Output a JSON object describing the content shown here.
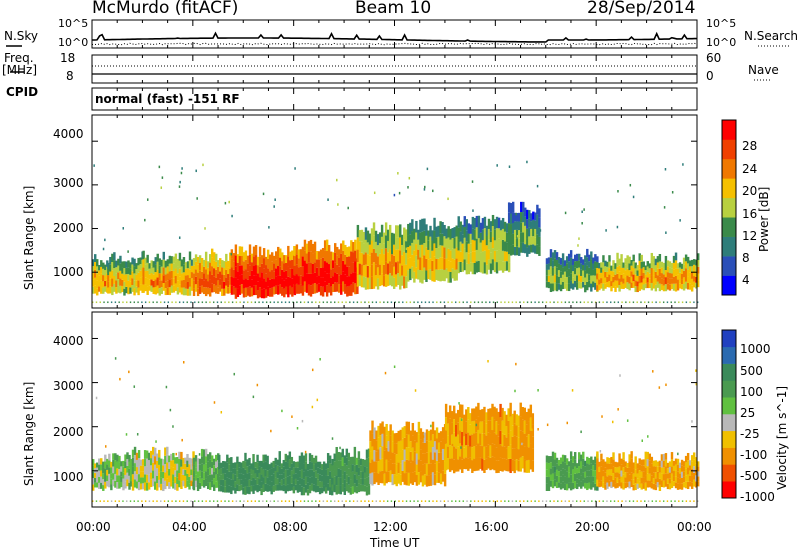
{
  "header": {
    "title": "McMurdo (fitACF)",
    "beam": "Beam 10",
    "date": "28/Sep/2014"
  },
  "noise_panel": {
    "left_label": "N.Sky",
    "right_label": "N.Search",
    "left_ticks": [
      "10^5",
      "10^0"
    ],
    "right_ticks": [
      "10^5",
      "10^0"
    ]
  },
  "freq_panel": {
    "left_label_1": "Freq.",
    "left_label_2": "[MHz]",
    "right_label": "Nave",
    "left_ticks": [
      "18",
      "8"
    ],
    "right_ticks": [
      "60",
      "0"
    ]
  },
  "cpid_panel": {
    "label": "CPID",
    "text": "normal (fast) -151 RF"
  },
  "power_panel": {
    "ylabel": "Slant Range [km]",
    "y_ticks": [
      "4000",
      "3000",
      "2000",
      "1000"
    ],
    "colorbar_label": "Power [dB]",
    "colorbar_ticks": [
      "28",
      "24",
      "20",
      "16",
      "12",
      "8",
      "4"
    ],
    "colors": [
      "#0000ff",
      "#2a4fb8",
      "#2e7d7a",
      "#3a8a4a",
      "#b8d040",
      "#f5c000",
      "#f07800",
      "#f04000",
      "#ff0000"
    ]
  },
  "velocity_panel": {
    "ylabel": "Slant Range [km]",
    "y_ticks": [
      "4000",
      "3000",
      "2000",
      "1000"
    ],
    "colorbar_label": "Velocity [m s^-1]",
    "colorbar_ticks": [
      "1000",
      "500",
      "100",
      "25",
      "-25",
      "-100",
      "-500",
      "-1000"
    ],
    "colors": [
      "#2040c0",
      "#2a6ab0",
      "#3a8a5a",
      "#4a9a50",
      "#60c040",
      "#b8b8b8",
      "#f0c000",
      "#f09000",
      "#f05000",
      "#ff0000"
    ]
  },
  "x_axis": {
    "ticks": [
      "00:00",
      "04:00",
      "08:00",
      "12:00",
      "16:00",
      "20:00",
      "00:00"
    ],
    "label": "Time UT"
  },
  "chart_data": {
    "type": "heatmap",
    "title": "McMurdo (fitACF) Beam 10 28/Sep/2014",
    "xlabel": "Time UT",
    "ylabel": "Slant Range [km]",
    "xlim": [
      0,
      24
    ],
    "ylim": [
      180,
      4600
    ],
    "power_range_db": [
      0,
      30
    ],
    "velocity_range": [
      -1000,
      1000
    ],
    "power_bands": [
      {
        "t0": 0.0,
        "t1": 0.6,
        "r0": 500,
        "r1": 1300,
        "db": 18
      },
      {
        "t0": 0.6,
        "t1": 2.0,
        "r0": 520,
        "r1": 1350,
        "db": 16
      },
      {
        "t0": 2.0,
        "t1": 4.0,
        "r0": 520,
        "r1": 1350,
        "db": 18
      },
      {
        "t0": 4.0,
        "t1": 5.5,
        "r0": 500,
        "r1": 1400,
        "db": 22
      },
      {
        "t0": 5.5,
        "t1": 8.0,
        "r0": 450,
        "r1": 1500,
        "db": 26
      },
      {
        "t0": 8.0,
        "t1": 10.5,
        "r0": 500,
        "r1": 1600,
        "db": 26
      },
      {
        "t0": 10.5,
        "t1": 12.5,
        "r0": 650,
        "r1": 2000,
        "db": 18
      },
      {
        "t0": 12.5,
        "t1": 14.5,
        "r0": 800,
        "r1": 2100,
        "db": 16
      },
      {
        "t0": 14.5,
        "t1": 16.5,
        "r0": 1000,
        "r1": 2200,
        "db": 14
      },
      {
        "t0": 16.5,
        "t1": 17.7,
        "r0": 1400,
        "r1": 2500,
        "db": 10
      },
      {
        "t0": 18.0,
        "t1": 20.0,
        "r0": 600,
        "r1": 1400,
        "db": 12
      },
      {
        "t0": 20.0,
        "t1": 24.0,
        "r0": 600,
        "r1": 1300,
        "db": 18
      }
    ],
    "velocity_bands": [
      {
        "t0": 0.0,
        "t1": 1.5,
        "r0": 600,
        "r1": 1300,
        "v": 50
      },
      {
        "t0": 1.5,
        "t1": 4.0,
        "r0": 600,
        "r1": 1400,
        "v": 0
      },
      {
        "t0": 4.0,
        "t1": 5.0,
        "r0": 600,
        "r1": 1400,
        "v": 100
      },
      {
        "t0": 5.0,
        "t1": 9.5,
        "r0": 500,
        "r1": 1300,
        "v": 300
      },
      {
        "t0": 9.5,
        "t1": 11.0,
        "r0": 500,
        "r1": 1400,
        "v": 200
      },
      {
        "t0": 11.0,
        "t1": 14.0,
        "r0": 700,
        "r1": 2000,
        "v": -120
      },
      {
        "t0": 14.0,
        "t1": 17.5,
        "r0": 1000,
        "r1": 2400,
        "v": -150
      },
      {
        "t0": 18.0,
        "t1": 20.0,
        "r0": 600,
        "r1": 1300,
        "v": 150
      },
      {
        "t0": 20.0,
        "t1": 24.0,
        "r0": 600,
        "r1": 1300,
        "v": -120
      }
    ]
  }
}
